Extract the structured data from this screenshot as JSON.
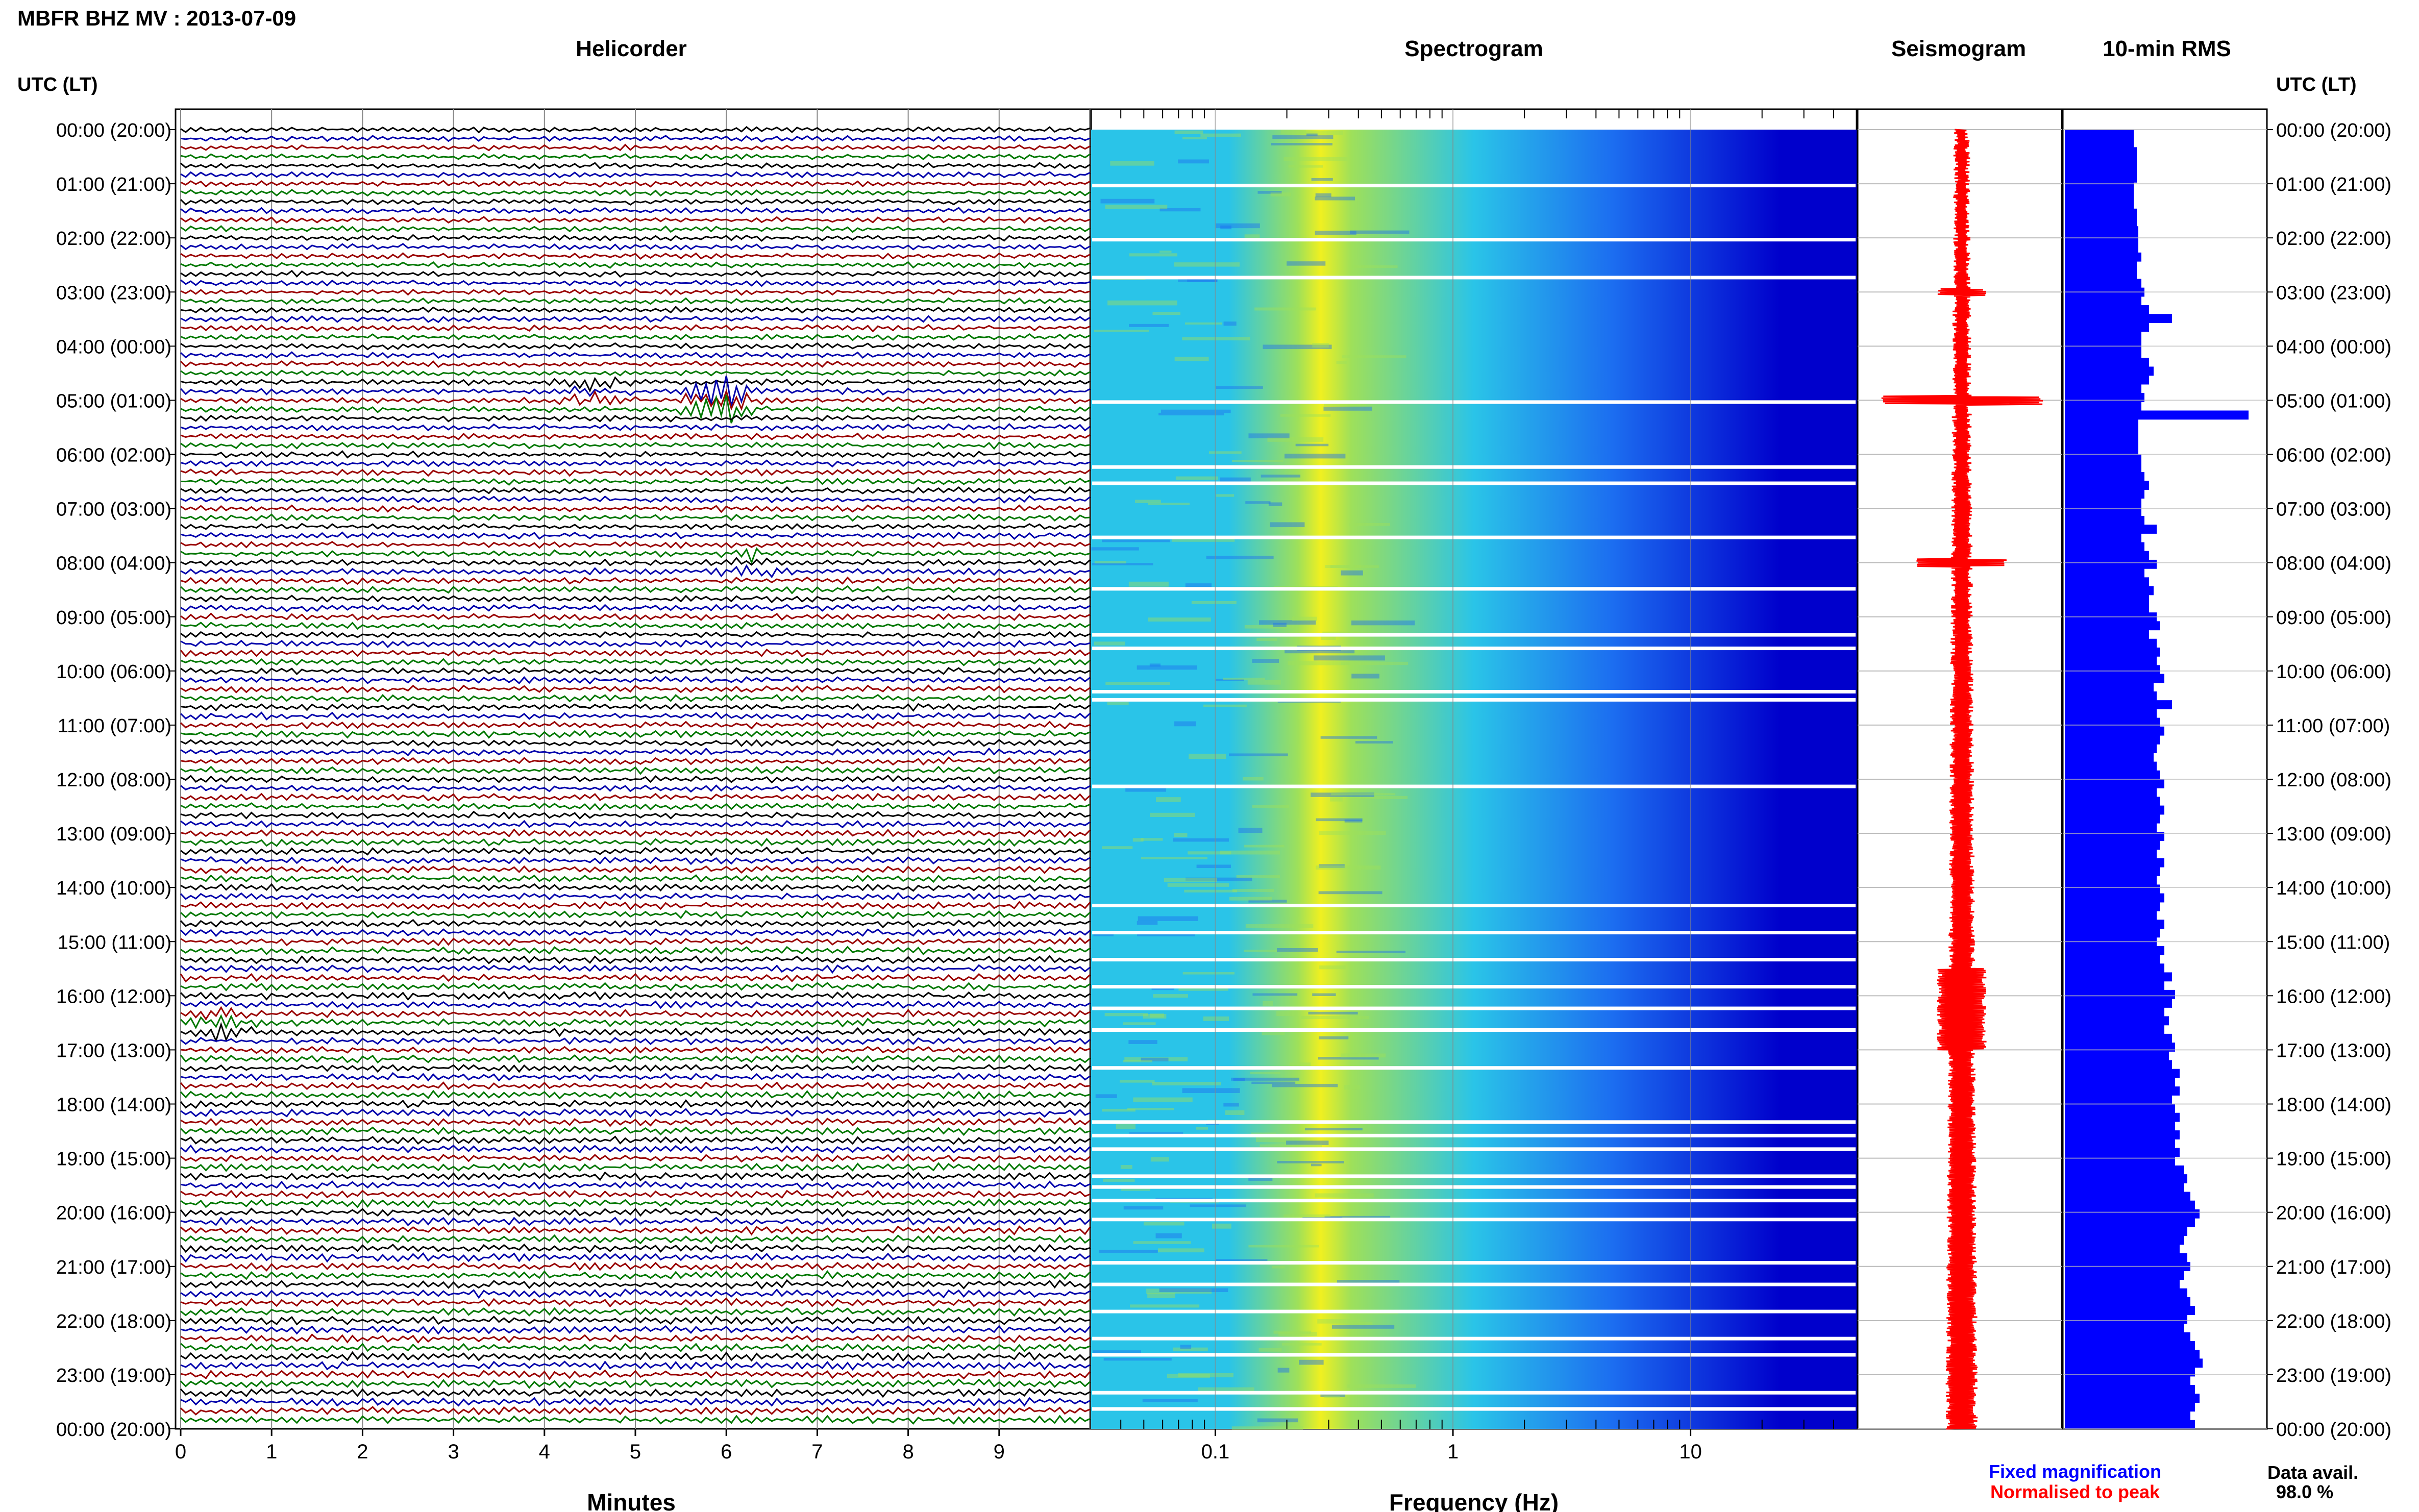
{
  "header": {
    "title": "MBFR BHZ MV : 2013-07-09"
  },
  "panels": {
    "helicorder": "Helicorder",
    "spectrogram": "Spectrogram",
    "seismogram": "Seismogram",
    "rms": "10-min RMS"
  },
  "time_axis": {
    "label": "UTC (LT)",
    "ticks": [
      "00:00 (20:00)",
      "01:00 (21:00)",
      "02:00 (22:00)",
      "03:00 (23:00)",
      "04:00 (00:00)",
      "05:00 (01:00)",
      "06:00 (02:00)",
      "07:00 (03:00)",
      "08:00 (04:00)",
      "09:00 (05:00)",
      "10:00 (06:00)",
      "11:00 (07:00)",
      "12:00 (08:00)",
      "13:00 (09:00)",
      "14:00 (10:00)",
      "15:00 (11:00)",
      "16:00 (12:00)",
      "17:00 (13:00)",
      "18:00 (14:00)",
      "19:00 (15:00)",
      "20:00 (16:00)",
      "21:00 (17:00)",
      "22:00 (18:00)",
      "23:00 (19:00)",
      "00:00 (20:00)"
    ]
  },
  "minutes_axis": {
    "label": "Minutes",
    "ticks": [
      "0",
      "1",
      "2",
      "3",
      "4",
      "5",
      "6",
      "7",
      "8",
      "9"
    ]
  },
  "frequency_axis": {
    "label": "Frequency (Hz)",
    "ticks": [
      "0.1",
      "1",
      "10"
    ],
    "scale": "log"
  },
  "legend": {
    "fixed": "Fixed magnification",
    "fixed_color": "#0000ff",
    "normalised": "Normalised to peak",
    "normalised_color": "#ff0000",
    "avail_label": "Data avail.",
    "avail_value": "98.0 %"
  },
  "colors": {
    "trace_colors": [
      "#000000",
      "#0000aa",
      "#990000",
      "#007700"
    ],
    "rms_bar": "#0000ff",
    "seismogram": "#ff0000"
  },
  "chart_data": [
    {
      "type": "line",
      "name": "Helicorder",
      "xlabel": "Minutes",
      "xlim": [
        0,
        10
      ],
      "rows_per_hour": 6,
      "hours": 24,
      "events": [
        {
          "hour": 5.0,
          "minute": 5.95,
          "amplitude": "large"
        },
        {
          "hour": 4.83,
          "minute": 4.55,
          "amplitude": "medium"
        },
        {
          "hour": 8.0,
          "minute": 6.3,
          "amplitude": "medium"
        },
        {
          "hour": 16.5,
          "minute": 0.4,
          "amplitude": "medium"
        }
      ]
    },
    {
      "type": "heatmap",
      "name": "Spectrogram",
      "xlabel": "Frequency (Hz)",
      "xscale": "log",
      "xlim": [
        0.03,
        50
      ],
      "peak_frequency_hz": 0.25,
      "colormap": [
        "#0000cc",
        "#1c6ef0",
        "#2ac4e8",
        "#9ee05a",
        "#f0f020"
      ]
    },
    {
      "type": "bar",
      "name": "10-min RMS",
      "orientation": "horizontal",
      "units": "relative",
      "values": [
        0.45,
        0.45,
        0.47,
        0.47,
        0.47,
        0.47,
        0.45,
        0.45,
        0.45,
        0.47,
        0.47,
        0.48,
        0.48,
        0.48,
        0.5,
        0.47,
        0.47,
        0.5,
        0.52,
        0.5,
        0.55,
        0.7,
        0.55,
        0.5,
        0.5,
        0.5,
        0.55,
        0.58,
        0.55,
        0.5,
        0.52,
        0.5,
        1.2,
        0.48,
        0.48,
        0.48,
        0.48,
        0.5,
        0.5,
        0.52,
        0.55,
        0.52,
        0.5,
        0.5,
        0.52,
        0.6,
        0.5,
        0.52,
        0.55,
        0.6,
        0.52,
        0.55,
        0.58,
        0.55,
        0.55,
        0.6,
        0.62,
        0.55,
        0.6,
        0.62,
        0.6,
        0.62,
        0.65,
        0.58,
        0.6,
        0.7,
        0.6,
        0.62,
        0.65,
        0.62,
        0.6,
        0.58,
        0.6,
        0.62,
        0.65,
        0.6,
        0.62,
        0.65,
        0.62,
        0.6,
        0.65,
        0.62,
        0.6,
        0.65,
        0.62,
        0.6,
        0.62,
        0.65,
        0.62,
        0.6,
        0.65,
        0.62,
        0.6,
        0.65,
        0.62,
        0.65,
        0.7,
        0.65,
        0.72,
        0.7,
        0.65,
        0.68,
        0.65,
        0.7,
        0.72,
        0.68,
        0.7,
        0.75,
        0.72,
        0.75,
        0.7,
        0.72,
        0.75,
        0.72,
        0.75,
        0.72,
        0.75,
        0.72,
        0.78,
        0.8,
        0.78,
        0.82,
        0.85,
        0.88,
        0.85,
        0.8,
        0.78,
        0.75,
        0.8,
        0.82,
        0.78,
        0.75,
        0.8,
        0.82,
        0.85,
        0.8,
        0.78,
        0.82,
        0.85,
        0.88,
        0.9,
        0.85,
        0.82,
        0.85,
        0.88,
        0.85,
        0.82,
        0.85
      ]
    }
  ]
}
